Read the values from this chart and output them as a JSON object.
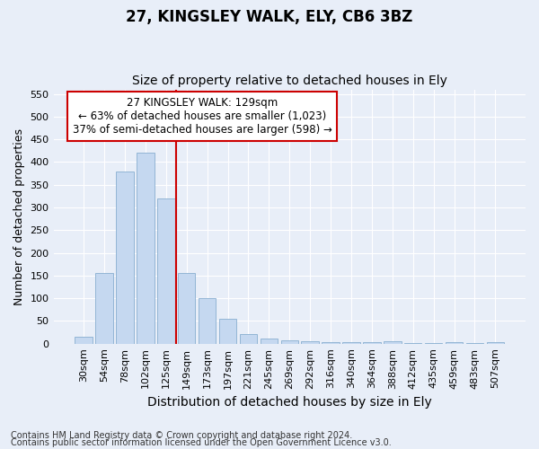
{
  "title1": "27, KINGSLEY WALK, ELY, CB6 3BZ",
  "title2": "Size of property relative to detached houses in Ely",
  "xlabel": "Distribution of detached houses by size in Ely",
  "ylabel": "Number of detached properties",
  "categories": [
    "30sqm",
    "54sqm",
    "78sqm",
    "102sqm",
    "125sqm",
    "149sqm",
    "173sqm",
    "197sqm",
    "221sqm",
    "245sqm",
    "269sqm",
    "292sqm",
    "316sqm",
    "340sqm",
    "364sqm",
    "388sqm",
    "412sqm",
    "435sqm",
    "459sqm",
    "483sqm",
    "507sqm"
  ],
  "values": [
    15,
    155,
    380,
    420,
    320,
    155,
    100,
    55,
    22,
    12,
    8,
    5,
    4,
    3,
    3,
    5,
    1,
    1,
    4,
    1,
    4
  ],
  "bar_color": "#c5d8f0",
  "bar_edge_color": "#88aed0",
  "highlight_index": 4,
  "red_line_x": 4.5,
  "red_line_color": "#cc0000",
  "ylim": [
    0,
    560
  ],
  "yticks": [
    0,
    50,
    100,
    150,
    200,
    250,
    300,
    350,
    400,
    450,
    500,
    550
  ],
  "annotation_line1": "27 KINGSLEY WALK: 129sqm",
  "annotation_line2": "← 63% of detached houses are smaller (1,023)",
  "annotation_line3": "37% of semi-detached houses are larger (598) →",
  "annotation_box_color": "#ffffff",
  "annotation_box_edge": "#cc0000",
  "footer1": "Contains HM Land Registry data © Crown copyright and database right 2024.",
  "footer2": "Contains public sector information licensed under the Open Government Licence v3.0.",
  "background_color": "#e8eef8",
  "grid_color": "#ffffff",
  "title1_fontsize": 12,
  "title2_fontsize": 10,
  "xlabel_fontsize": 10,
  "ylabel_fontsize": 9,
  "tick_fontsize": 8,
  "footer_fontsize": 7,
  "annotation_fontsize": 8.5
}
